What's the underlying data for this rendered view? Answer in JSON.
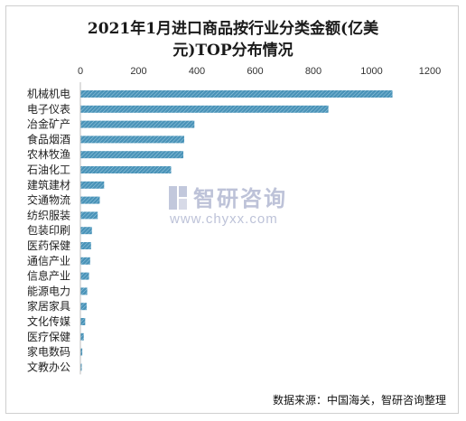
{
  "chart_data": {
    "type": "bar",
    "orientation": "horizontal",
    "title_line1": "2021年1月进口商品按行业分类金额(亿美",
    "title_line2": "元)TOP分布情况",
    "categories": [
      "机械机电",
      "电子仪表",
      "冶金矿产",
      "食品烟酒",
      "农林牧渔",
      "石油化工",
      "建筑建材",
      "交通物流",
      "纺织服装",
      "包装印刷",
      "医药保健",
      "通信产业",
      "信息产业",
      "能源电力",
      "家居家具",
      "文化传媒",
      "医疗保健",
      "家电数码",
      "文教办公"
    ],
    "values": [
      1070,
      850,
      390,
      355,
      352,
      310,
      80,
      65,
      58,
      38,
      35,
      32,
      28,
      22,
      20,
      15,
      10,
      5,
      3
    ],
    "xlim": [
      0,
      1200
    ],
    "x_ticks": [
      "0",
      "200",
      "400",
      "600",
      "800",
      "1000",
      "1200"
    ],
    "x_axis_position": "top",
    "grid": false,
    "bar_color": "#4a93b8",
    "bar_pattern": "diagonal-hatch"
  },
  "watermark": {
    "name": "智研咨询",
    "url": "www.chyxx.com",
    "icon": "chyxx-logo-icon"
  },
  "source_note": "数据来源：中国海关，智研咨询整理"
}
